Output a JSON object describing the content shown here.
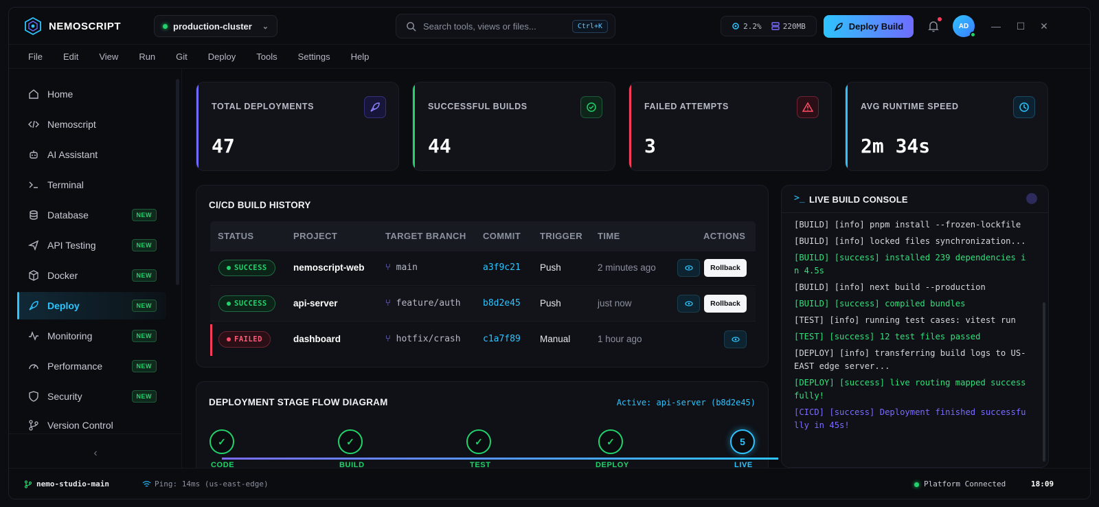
{
  "app": {
    "name": "NEMOSCRIPT",
    "cluster": "production-cluster"
  },
  "search": {
    "placeholder": "Search tools, views or files...",
    "shortcut": "Ctrl+K"
  },
  "stats": {
    "cpu": "2.2%",
    "memory": "220MB"
  },
  "header": {
    "deploy_label": "Deploy Build",
    "avatar": "AD"
  },
  "menu": [
    "File",
    "Edit",
    "View",
    "Run",
    "Git",
    "Deploy",
    "Tools",
    "Settings",
    "Help"
  ],
  "sidebar": {
    "items": [
      {
        "label": "Home",
        "icon": "home-icon"
      },
      {
        "label": "Nemoscript",
        "icon": "code-icon"
      },
      {
        "label": "AI Assistant",
        "icon": "robot-icon"
      },
      {
        "label": "Terminal",
        "icon": "terminal-icon"
      },
      {
        "label": "Database",
        "icon": "database-icon",
        "badge": "NEW"
      },
      {
        "label": "API Testing",
        "icon": "send-icon",
        "badge": "NEW"
      },
      {
        "label": "Docker",
        "icon": "box-icon",
        "badge": "NEW"
      },
      {
        "label": "Deploy",
        "icon": "rocket-icon",
        "badge": "NEW",
        "active": true
      },
      {
        "label": "Monitoring",
        "icon": "activity-icon",
        "badge": "NEW"
      },
      {
        "label": "Performance",
        "icon": "gauge-icon",
        "badge": "NEW"
      },
      {
        "label": "Security",
        "icon": "shield-icon",
        "badge": "NEW"
      },
      {
        "label": "Version Control",
        "icon": "branch-icon"
      }
    ]
  },
  "cards": [
    {
      "label": "TOTAL DEPLOYMENTS",
      "value": "47",
      "color": "#6f6cff",
      "icon": "rocket-icon"
    },
    {
      "label": "SUCCESSFUL BUILDS",
      "value": "44",
      "color": "#22d36b",
      "icon": "check-circle-icon"
    },
    {
      "label": "FAILED ATTEMPTS",
      "value": "3",
      "color": "#ff3b5c",
      "icon": "warning-icon"
    },
    {
      "label": "AVG RUNTIME SPEED",
      "value": "2m 34s",
      "color": "#2ec4ff",
      "icon": "clock-icon"
    }
  ],
  "history": {
    "title": "CI/CD BUILD HISTORY",
    "columns": [
      "STATUS",
      "PROJECT",
      "TARGET BRANCH",
      "COMMIT",
      "TRIGGER",
      "TIME",
      "ACTIONS"
    ],
    "rows": [
      {
        "status": "SUCCESS",
        "project": "nemoscript-web",
        "branch": "main",
        "commit": "a3f9c21",
        "trigger": "Push",
        "time": "2 minutes ago",
        "rollback": "Rollback"
      },
      {
        "status": "SUCCESS",
        "project": "api-server",
        "branch": "feature/auth",
        "commit": "b8d2e45",
        "trigger": "Push",
        "time": "just now",
        "rollback": "Rollback"
      },
      {
        "status": "FAILED",
        "project": "dashboard",
        "branch": "hotfix/crash",
        "commit": "c1a7f89",
        "trigger": "Manual",
        "time": "1 hour ago"
      }
    ]
  },
  "flow": {
    "title": "DEPLOYMENT STAGE FLOW DIAGRAM",
    "active": "Active: api-server (b8d2e45)",
    "stages": [
      {
        "label": "CODE",
        "mark": "✓"
      },
      {
        "label": "BUILD",
        "mark": "✓"
      },
      {
        "label": "TEST",
        "mark": "✓"
      },
      {
        "label": "DEPLOY",
        "mark": "✓"
      },
      {
        "label": "LIVE",
        "mark": "5"
      }
    ]
  },
  "console": {
    "title": "LIVE BUILD CONSOLE",
    "lines": [
      {
        "text": "[BUILD] [info] pnpm install --frozen-lockfile",
        "kind": "info"
      },
      {
        "text": "[BUILD] [info] locked files synchronization...",
        "kind": "info"
      },
      {
        "text": "[BUILD] [success] installed 239 dependencies in 4.5s",
        "kind": "success"
      },
      {
        "text": "[BUILD] [info] next build --production",
        "kind": "info"
      },
      {
        "text": "[BUILD] [success] compiled bundles",
        "kind": "success"
      },
      {
        "text": "[TEST] [info] running test cases: vitest run",
        "kind": "info"
      },
      {
        "text": "[TEST] [success] 12 test files passed",
        "kind": "success"
      },
      {
        "text": "[DEPLOY] [info] transferring build logs to US-EAST edge server...",
        "kind": "info"
      },
      {
        "text": "[DEPLOY] [success] live routing mapped successfully!",
        "kind": "success"
      },
      {
        "text": "[CICD] [success] Deployment finished successfully in 45s!",
        "kind": "cicd"
      }
    ]
  },
  "statusbar": {
    "branch": "nemo-studio-main",
    "ping": "Ping: 14ms (us-east-edge)",
    "connection": "Platform Connected",
    "clock": "18:09"
  }
}
